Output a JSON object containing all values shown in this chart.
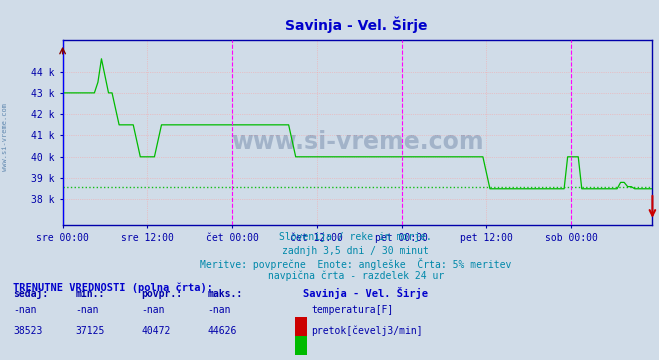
{
  "title": "Savinja - Vel. Širje",
  "title_color": "#0000cc",
  "bg_color": "#d0dce8",
  "plot_bg_color": "#d0dce8",
  "flow_color": "#00bb00",
  "temp_color": "#cc0000",
  "avg_line_color": "#00bb00",
  "y_min": 36800,
  "y_max": 45500,
  "yticks": [
    38000,
    39000,
    40000,
    41000,
    42000,
    43000,
    44000
  ],
  "ytick_labels": [
    "38 k",
    "39 k",
    "40 k",
    "41 k",
    "42 k",
    "43 k",
    "44 k"
  ],
  "xtick_labels": [
    "sre 00:00",
    "sre 12:00",
    "čet 00:00",
    "čet 12:00",
    "pet 00:00",
    "pet 12:00",
    "sob 00:00"
  ],
  "subtitle_lines": [
    "Slovenija / reke in morje.",
    "zadnjh 3,5 dni / 30 minut",
    "Meritve: povprečne  Enote: angleške  Črta: 5% meritev",
    "navpična črta - razdelek 24 ur"
  ],
  "table_header": "TRENUTNE VREDNOSTI (polna črta):",
  "col_headers": [
    "sedaj:",
    "min.:",
    "povpr.:",
    "maks.:"
  ],
  "temp_values": [
    "-nan",
    "-nan",
    "-nan",
    "-nan"
  ],
  "flow_values": [
    "38523",
    "37125",
    "40472",
    "44626"
  ],
  "station_label": "Savinja - Vel. Širje",
  "temp_label": "temperatura[F]",
  "flow_label": "pretok[čevelj3/min]",
  "watermark": "www.si-vreme.com",
  "avg_flow": 38600,
  "n_points": 168
}
